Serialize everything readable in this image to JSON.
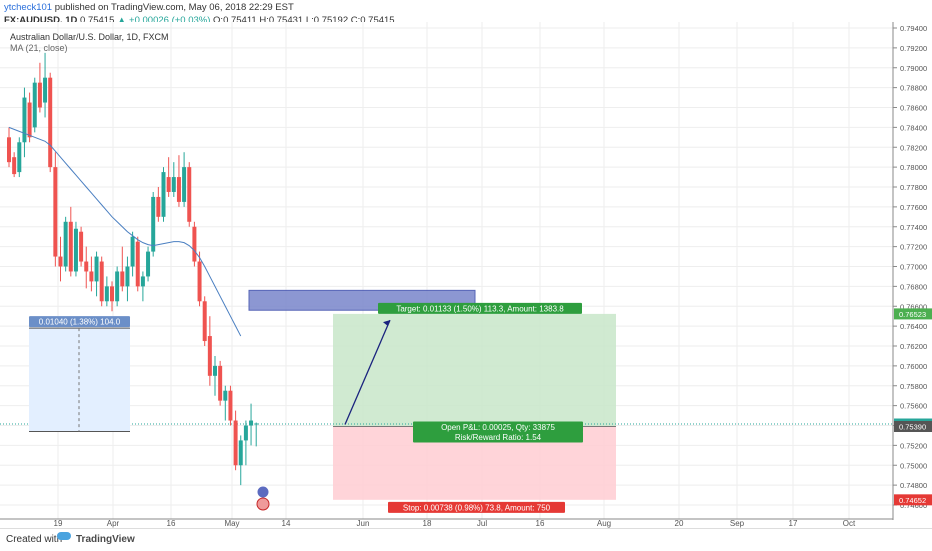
{
  "header": {
    "user": "ytcheck101",
    "published": "published on TradingView.com, May 06, 2018 22:29 EST",
    "symbol": "FX:AUDUSD, 1D",
    "last": "0.75415",
    "change": "+0.00026 (+0.03%)",
    "open": "0.75411",
    "high": "0.75431",
    "low": "0.75192",
    "close": "0.75415",
    "open_label": "O:",
    "high_label": "H:",
    "low_label": "L:",
    "close_label": "C:"
  },
  "chart_data": {
    "type": "candlestick",
    "title": "Australian Dollar/U.S. Dollar, 1D, FXCM",
    "indicator": "MA (21, close)",
    "y_ticks": [
      "0.79400",
      "0.79200",
      "0.79000",
      "0.78800",
      "0.78600",
      "0.78400",
      "0.78200",
      "0.78000",
      "0.77800",
      "0.77600",
      "0.77400",
      "0.77200",
      "0.77000",
      "0.76800",
      "0.76600",
      "0.76400",
      "0.76200",
      "0.76000",
      "0.75800",
      "0.75600",
      "0.75400",
      "0.75200",
      "0.75000",
      "0.74800",
      "0.74600"
    ],
    "x_ticks": [
      "19",
      "Apr",
      "16",
      "May",
      "14",
      "Jun",
      "18",
      "Jul",
      "16",
      "Aug",
      "20",
      "Sep",
      "17",
      "Oct"
    ],
    "price_tags": [
      {
        "label": "0.76523",
        "value": 0.76523,
        "color": "#4caf50"
      },
      {
        "label": "0.75415",
        "value": 0.75415,
        "color": "#26a69a"
      },
      {
        "label": "0.75390",
        "value": 0.7539,
        "color": "#555555"
      },
      {
        "label": "0.74652",
        "value": 0.74652,
        "color": "#e53935"
      }
    ],
    "candles": [
      [
        0.783,
        0.784,
        0.78,
        0.7805
      ],
      [
        0.781,
        0.7815,
        0.779,
        0.7793
      ],
      [
        0.7795,
        0.783,
        0.779,
        0.7825
      ],
      [
        0.7825,
        0.788,
        0.781,
        0.787
      ],
      [
        0.7865,
        0.7875,
        0.7825,
        0.783
      ],
      [
        0.784,
        0.789,
        0.7835,
        0.7885
      ],
      [
        0.7885,
        0.7905,
        0.7855,
        0.786
      ],
      [
        0.7865,
        0.7915,
        0.785,
        0.789
      ],
      [
        0.789,
        0.7895,
        0.7795,
        0.78
      ],
      [
        0.78,
        0.7815,
        0.77,
        0.771
      ],
      [
        0.771,
        0.773,
        0.7685,
        0.77
      ],
      [
        0.77,
        0.775,
        0.7695,
        0.7745
      ],
      [
        0.7745,
        0.776,
        0.769,
        0.7695
      ],
      [
        0.7695,
        0.7745,
        0.769,
        0.7738
      ],
      [
        0.7735,
        0.774,
        0.77,
        0.7705
      ],
      [
        0.7705,
        0.772,
        0.7678,
        0.7695
      ],
      [
        0.7695,
        0.771,
        0.7675,
        0.7685
      ],
      [
        0.7685,
        0.7715,
        0.767,
        0.771
      ],
      [
        0.7705,
        0.771,
        0.766,
        0.7665
      ],
      [
        0.7665,
        0.769,
        0.766,
        0.768
      ],
      [
        0.768,
        0.7685,
        0.7655,
        0.7665
      ],
      [
        0.7665,
        0.77,
        0.766,
        0.7695
      ],
      [
        0.7695,
        0.772,
        0.7675,
        0.768
      ],
      [
        0.768,
        0.771,
        0.7665,
        0.77
      ],
      [
        0.77,
        0.7735,
        0.769,
        0.773
      ],
      [
        0.7725,
        0.773,
        0.7675,
        0.768
      ],
      [
        0.768,
        0.7695,
        0.7665,
        0.769
      ],
      [
        0.769,
        0.772,
        0.7685,
        0.7715
      ],
      [
        0.7715,
        0.7775,
        0.771,
        0.777
      ],
      [
        0.777,
        0.778,
        0.7745,
        0.775
      ],
      [
        0.775,
        0.78,
        0.7745,
        0.7795
      ],
      [
        0.779,
        0.781,
        0.777,
        0.7775
      ],
      [
        0.7775,
        0.7805,
        0.777,
        0.779
      ],
      [
        0.779,
        0.7812,
        0.776,
        0.7765
      ],
      [
        0.7765,
        0.7815,
        0.776,
        0.78
      ],
      [
        0.78,
        0.7805,
        0.774,
        0.7745
      ],
      [
        0.774,
        0.7745,
        0.77,
        0.7705
      ],
      [
        0.7705,
        0.7715,
        0.766,
        0.7665
      ],
      [
        0.7665,
        0.767,
        0.762,
        0.7625
      ],
      [
        0.763,
        0.765,
        0.758,
        0.759
      ],
      [
        0.759,
        0.761,
        0.757,
        0.76
      ],
      [
        0.76,
        0.7605,
        0.756,
        0.7565
      ],
      [
        0.7565,
        0.758,
        0.7545,
        0.7575
      ],
      [
        0.7575,
        0.758,
        0.754,
        0.7545
      ],
      [
        0.7545,
        0.7555,
        0.7495,
        0.75
      ],
      [
        0.75,
        0.753,
        0.748,
        0.7525
      ],
      [
        0.7525,
        0.7545,
        0.75,
        0.754
      ],
      [
        0.754,
        0.7562,
        0.752,
        0.7545
      ],
      [
        0.7541,
        0.7543,
        0.7519,
        0.7542
      ]
    ],
    "ma21": [
      0.784,
      0.7838,
      0.7836,
      0.7834,
      0.7832,
      0.783,
      0.7828,
      0.7826,
      0.7822,
      0.7816,
      0.781,
      0.7804,
      0.7798,
      0.7792,
      0.7786,
      0.778,
      0.7774,
      0.7768,
      0.7762,
      0.7756,
      0.775,
      0.7745,
      0.774,
      0.7735,
      0.7731,
      0.7727,
      0.7724,
      0.7722,
      0.7721,
      0.7722,
      0.7723,
      0.7724,
      0.7725,
      0.7725,
      0.7724,
      0.7721,
      0.7716,
      0.7709,
      0.77,
      0.769,
      0.768,
      0.767,
      0.766,
      0.765,
      0.764,
      0.763
    ],
    "measure": {
      "label": "0.01040 (1.38%) 104.0"
    },
    "position": {
      "target_label": "Target: 0.01133 (1.50%) 113.3, Amount: 1383.8",
      "open_label": "Open P&L: 0.00025, Qty: 33875",
      "rr_label": "Risk/Reward Ratio: 1.54",
      "stop_label": "Stop: 0.00738 (0.98%) 73.8, Amount: 750",
      "entry": 0.7539,
      "target": 0.76523,
      "stop": 0.74652
    },
    "colors": {
      "up": "#26a69a",
      "down": "#ef5350",
      "ma": "#4a7fc1",
      "profit": "#c8e6c9",
      "loss": "#ffcdd2",
      "zone": "#7986cb"
    }
  },
  "footer": {
    "created_with": "Created with",
    "brand": "TradingView"
  }
}
